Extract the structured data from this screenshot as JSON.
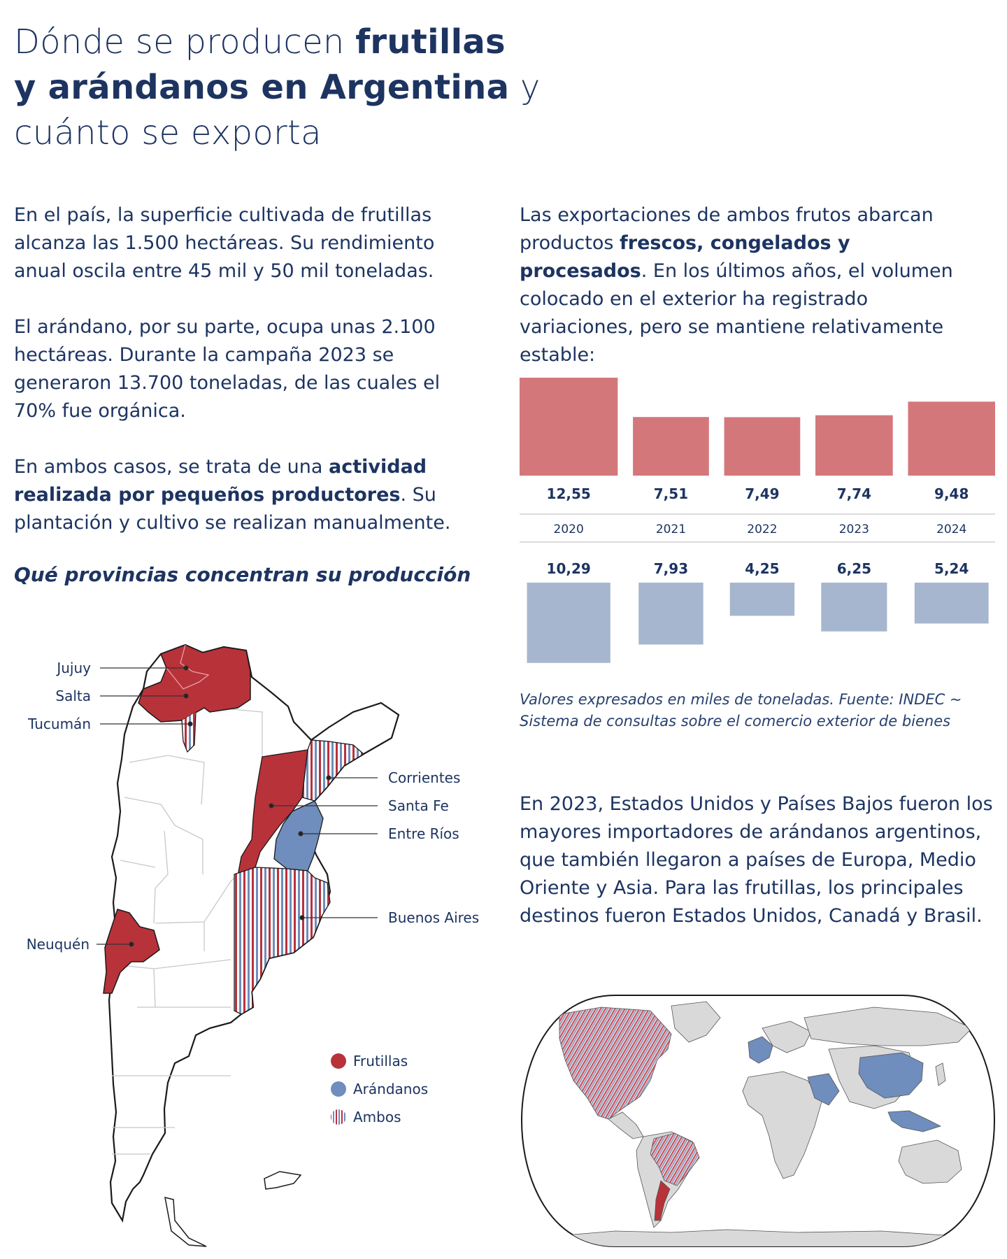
{
  "title": {
    "line1_plain": "Dónde se producen ",
    "line1_bold": "frutillas",
    "line2_bold": "y arándanos en Argentina",
    "line2_plain": " y",
    "line3_plain": "cuánto se exporta"
  },
  "left_text": {
    "p1": "En el país, la superficie cultivada de frutillas alcanza las 1.500 hectáreas. Su rendimiento anual oscila entre 45 mil y 50 mil toneladas.",
    "p2": "El arándano, por su parte, ocupa unas 2.100 hectáreas. Durante la campaña 2023 se generaron 13.700 toneladas, de las cuales el 70% fue orgánica.",
    "p3_a": "En ambos casos, se trata de una ",
    "p3_bold": "actividad realizada por pequeños productores",
    "p3_b": ". Su plantación y cultivo se realizan manualmente."
  },
  "right_text": {
    "p1_a": "Las exportaciones de ambos frutos abarcan productos ",
    "p1_bold": "frescos, congelados y procesados",
    "p1_b": ". En los últimos años, el volumen colocado en el exterior ha registrado variaciones, pero se mantiene relativamente estable:",
    "p2": "En 2023, Estados Unidos y Países Bajos fueron los mayores importadores de arándanos argentinos, que también llegaron a países de Europa, Medio Oriente y Asia. Para las frutillas, los principales destinos fueron Estados Unidos, Canadá y Brasil."
  },
  "map_section": {
    "heading": "Qué provincias concentran su producción",
    "labels": {
      "jujuy": "Jujuy",
      "salta": "Salta",
      "tucuman": "Tucumán",
      "corrientes": "Corrientes",
      "santa_fe": "Santa Fe",
      "entre_rios": "Entre Ríos",
      "buenos_aires": "Buenos Aires",
      "neuquen": "Neuquén"
    },
    "legend": {
      "frutillas": "Frutillas",
      "arandanos": "Arándanos",
      "ambos": "Ambos"
    }
  },
  "colors": {
    "frutillas_map": "#b8323a",
    "arandanos_map": "#6f8dbd",
    "frutillas_bar": "#d4777b",
    "arandanos_bar": "#a7b6cf",
    "text": "#1d3461"
  },
  "chart_data": {
    "type": "bar",
    "categories": [
      "2020",
      "2021",
      "2022",
      "2023",
      "2024"
    ],
    "series": [
      {
        "values": [
          12.55,
          7.51,
          7.49,
          7.74,
          9.48
        ],
        "labels": [
          "12,55",
          "7,51",
          "7,49",
          "7,74",
          "9,48"
        ],
        "color": "#d4777b"
      },
      {
        "values": [
          10.29,
          7.93,
          4.25,
          6.25,
          5.24
        ],
        "labels": [
          "10,29",
          "7,93",
          "4,25",
          "6,25",
          "5,24"
        ],
        "color": "#a7b6cf"
      }
    ],
    "note": "Valores expresados en miles de toneladas. Fuente: INDEC ~ Sistema de consultas sobre el comercio exterior de bienes"
  }
}
